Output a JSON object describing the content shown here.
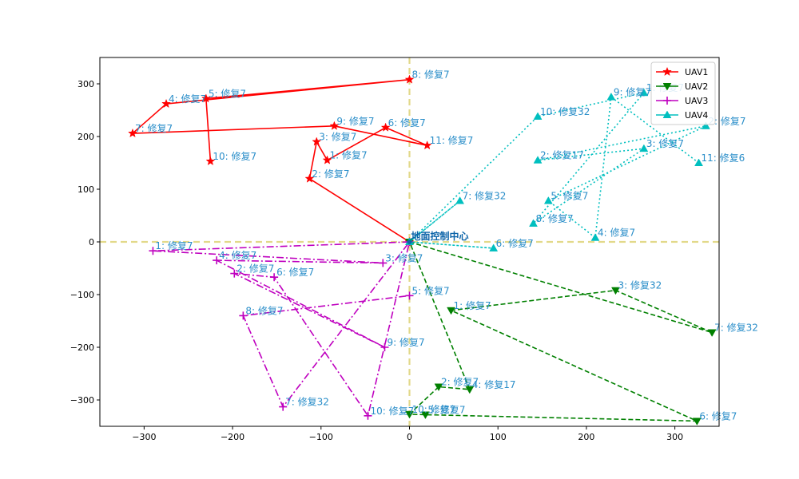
{
  "chart_data": {
    "type": "line",
    "xlim": [
      -350,
      350
    ],
    "ylim": [
      -350,
      350
    ],
    "xticks": [
      -300,
      -200,
      -100,
      0,
      100,
      200,
      300
    ],
    "yticks": [
      -300,
      -200,
      -100,
      0,
      100,
      200,
      300
    ],
    "grid": false,
    "legend_position": "top-right",
    "center": {
      "label": "地面控制中心",
      "x": 0,
      "y": 0
    },
    "ref_lines": {
      "color": "#e2d98a",
      "x": 0,
      "y": 0
    },
    "series": [
      {
        "name": "UAV1",
        "color": "#ff0000",
        "marker": "star",
        "linestyle": "solid",
        "path": [
          {
            "x": 0,
            "y": 0
          },
          {
            "x": -113,
            "y": 120,
            "label": "2: 修复7"
          },
          {
            "x": -105,
            "y": 190,
            "label": "3: 修复7"
          },
          {
            "x": -93,
            "y": 155,
            "label": "1: 修复7"
          },
          {
            "x": -27,
            "y": 217,
            "label": "6: 修复7"
          },
          {
            "x": 20,
            "y": 183,
            "label": "11: 修复7"
          },
          {
            "x": -85,
            "y": 220,
            "label": "9: 修复7"
          },
          {
            "x": -313,
            "y": 206,
            "label": "7: 修复7"
          },
          {
            "x": -275,
            "y": 262,
            "label": "4: 修复7"
          },
          {
            "x": 0,
            "y": 308,
            "label": "8: 修复7"
          },
          {
            "x": -230,
            "y": 272,
            "label": "5: 修复7"
          },
          {
            "x": -225,
            "y": 153,
            "label": "10: 修复7"
          }
        ]
      },
      {
        "name": "UAV2",
        "color": "#008000",
        "marker": "triangle-down",
        "linestyle": "dashed",
        "path": [
          {
            "x": 0,
            "y": 0
          },
          {
            "x": 342,
            "y": -172,
            "label": "7: 修复32"
          },
          {
            "x": 233,
            "y": -92,
            "label": "3: 修复32"
          },
          {
            "x": 47,
            "y": -130,
            "label": "1: 修复7"
          },
          {
            "x": 325,
            "y": -340,
            "label": "6: 修复7"
          },
          {
            "x": 18,
            "y": -328,
            "label": "5: 修复7"
          },
          {
            "x": 0,
            "y": -327,
            "label": "10: 修复7"
          },
          {
            "x": 33,
            "y": -275,
            "label": "2: 修复7"
          },
          {
            "x": 68,
            "y": -280,
            "label": "4: 修复17"
          },
          {
            "x": 0,
            "y": 0
          }
        ]
      },
      {
        "name": "UAV3",
        "color": "#bf00bf",
        "marker": "plus",
        "linestyle": "dashdot",
        "path": [
          {
            "x": 0,
            "y": 0
          },
          {
            "x": -290,
            "y": -17,
            "label": "1: 修复7"
          },
          {
            "x": -30,
            "y": -40,
            "label": "3: 修复7"
          },
          {
            "x": -218,
            "y": -35,
            "label": "4: 修复7"
          },
          {
            "x": -28,
            "y": -200,
            "label": "9: 修复7"
          },
          {
            "x": -198,
            "y": -60,
            "label": "2: 修复7"
          },
          {
            "x": -153,
            "y": -67,
            "label": "6: 修复7"
          },
          {
            "x": -47,
            "y": -330,
            "label": "10: 修复7"
          },
          {
            "x": 0,
            "y": 0
          },
          {
            "x": -143,
            "y": -313,
            "label": "7: 修复32"
          },
          {
            "x": -188,
            "y": -140,
            "label": "8: 修复7"
          },
          {
            "x": 0,
            "y": -102,
            "label": "5: 修复7"
          }
        ]
      },
      {
        "name": "UAV4",
        "color": "#00bfbf",
        "marker": "triangle-up",
        "linestyle": "dotted",
        "path": [
          {
            "x": 0,
            "y": 0
          },
          {
            "x": 95,
            "y": -12,
            "label": "6: 修复7"
          },
          {
            "x": 0,
            "y": 0
          },
          {
            "x": 57,
            "y": 78,
            "label": "7: 修复32"
          },
          {
            "x": 0,
            "y": 0
          },
          {
            "x": 145,
            "y": 238,
            "label": "10: 修复32"
          },
          {
            "x": 265,
            "y": 283,
            "label": "1: 修复7"
          },
          {
            "x": 140,
            "y": 35,
            "label": "8: 修复7"
          },
          {
            "x": 265,
            "y": 177,
            "label": "3: 修复7"
          },
          {
            "x": 145,
            "y": 155,
            "label": "2: 修复17"
          },
          {
            "x": 335,
            "y": 220,
            "label": "2: 修复7"
          },
          {
            "x": 157,
            "y": 78,
            "label": "5: 修复7"
          },
          {
            "x": 210,
            "y": 8,
            "label": "4: 修复7"
          },
          {
            "x": 228,
            "y": 275,
            "label": "9: 修复7"
          },
          {
            "x": 327,
            "y": 150,
            "label": "11: 修复6"
          }
        ]
      }
    ]
  }
}
